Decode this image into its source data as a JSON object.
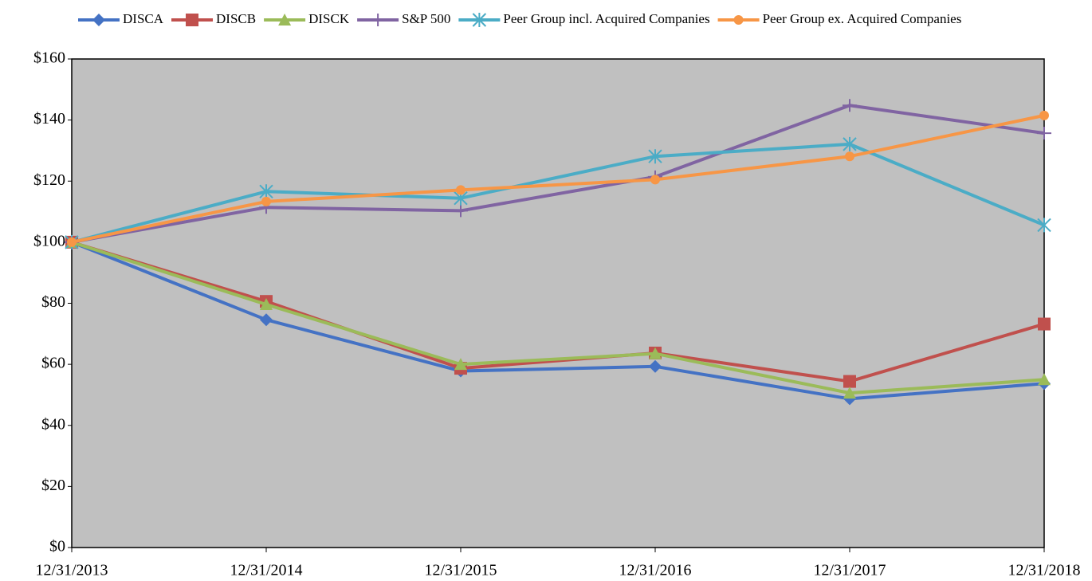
{
  "chart_data": {
    "type": "line",
    "categories": [
      "12/31/2013",
      "12/31/2014",
      "12/31/2015",
      "12/31/2016",
      "12/31/2017",
      "12/31/2018"
    ],
    "series": [
      {
        "name": "DISCA",
        "color": "#4472c4",
        "marker": "diamond",
        "values": [
          100,
          74.6,
          57.8,
          59.3,
          48.7,
          53.7
        ]
      },
      {
        "name": "DISCB",
        "color": "#c0504d",
        "marker": "square",
        "values": [
          100,
          80.6,
          58.7,
          63.7,
          54.4,
          73.2
        ]
      },
      {
        "name": "DISCK",
        "color": "#9bbb59",
        "marker": "triangle",
        "values": [
          100,
          79.6,
          60.0,
          63.5,
          50.6,
          55.0
        ]
      },
      {
        "name": "S&P 500",
        "color": "#8064a2",
        "marker": "dash",
        "values": [
          100,
          111.4,
          110.3,
          121.4,
          144.8,
          135.7
        ]
      },
      {
        "name": "Peer Group incl. Acquired Companies",
        "color": "#4bacc6",
        "marker": "star",
        "values": [
          100,
          116.6,
          114.4,
          128.1,
          132.1,
          105.6
        ]
      },
      {
        "name": "Peer Group ex. Acquired Companies",
        "color": "#f79646",
        "marker": "circle",
        "values": [
          100,
          113.3,
          117.1,
          120.5,
          128.1,
          141.5
        ]
      }
    ],
    "ylim": [
      0,
      160
    ],
    "yticks": [
      {
        "value": 0,
        "label": "$0"
      },
      {
        "value": 20,
        "label": "$20"
      },
      {
        "value": 40,
        "label": "$40"
      },
      {
        "value": 60,
        "label": "$60"
      },
      {
        "value": 80,
        "label": "$80"
      },
      {
        "value": 100,
        "label": "$100"
      },
      {
        "value": 120,
        "label": "$120"
      },
      {
        "value": 140,
        "label": "$140"
      },
      {
        "value": 160,
        "label": "$160"
      }
    ],
    "plot_background": "#c0c0c0",
    "legend": "top"
  }
}
